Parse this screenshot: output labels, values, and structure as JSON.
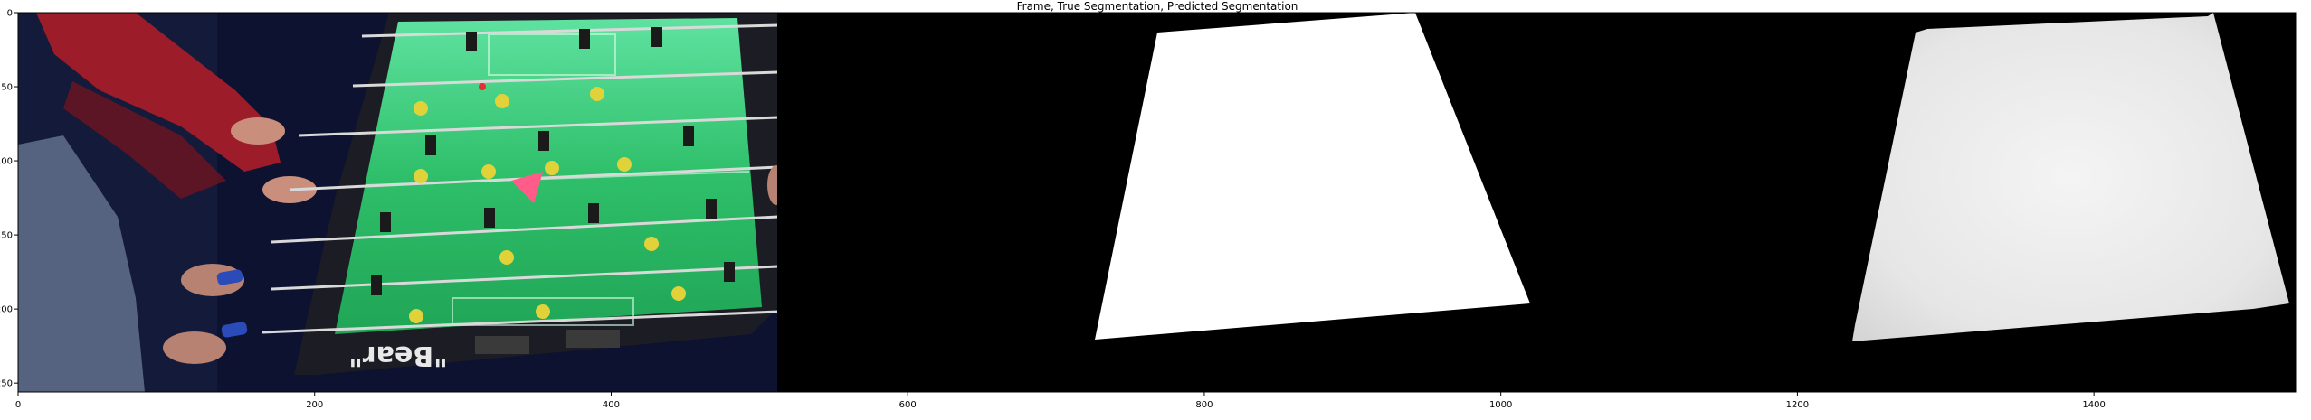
{
  "title": "Frame, True Segmentation, Predicted Segmentation",
  "x_ticks": [
    {
      "value": 0,
      "label": "0"
    },
    {
      "value": 200,
      "label": "200"
    },
    {
      "value": 400,
      "label": "400"
    },
    {
      "value": 600,
      "label": "600"
    },
    {
      "value": 800,
      "label": "800"
    },
    {
      "value": 1000,
      "label": "1000"
    },
    {
      "value": 1200,
      "label": "1200"
    },
    {
      "value": 1400,
      "label": "1400"
    }
  ],
  "y_ticks": [
    {
      "value": 0,
      "label": "0"
    },
    {
      "value": 50,
      "label": "50"
    },
    {
      "value": 100,
      "label": "100"
    },
    {
      "value": 150,
      "label": "150"
    },
    {
      "value": 200,
      "label": "200"
    },
    {
      "value": 250,
      "label": "250"
    }
  ],
  "image_extent": {
    "width": 1536,
    "height": 256
  },
  "panels": [
    {
      "name": "frame",
      "x_start": 0,
      "x_end": 512
    },
    {
      "name": "true-segmentation",
      "x_start": 512,
      "x_end": 1024
    },
    {
      "name": "predicted-segmentation",
      "x_start": 1024,
      "x_end": 1536
    }
  ],
  "frame_text": {
    "table_brand": "\"Bear\""
  },
  "colors": {
    "background": "#ffffff",
    "mask_background": "#000000",
    "mask_foreground": "#ffffff",
    "predicted_foreground": "#ececec",
    "table_green": "#2fbf6a",
    "table_frame": "#1c1c24",
    "player_yellow": "#e1d23a",
    "player_black": "#1a1a1a",
    "sleeve_red": "#9c1c2a",
    "handle_blue": "#2a4bb8"
  }
}
